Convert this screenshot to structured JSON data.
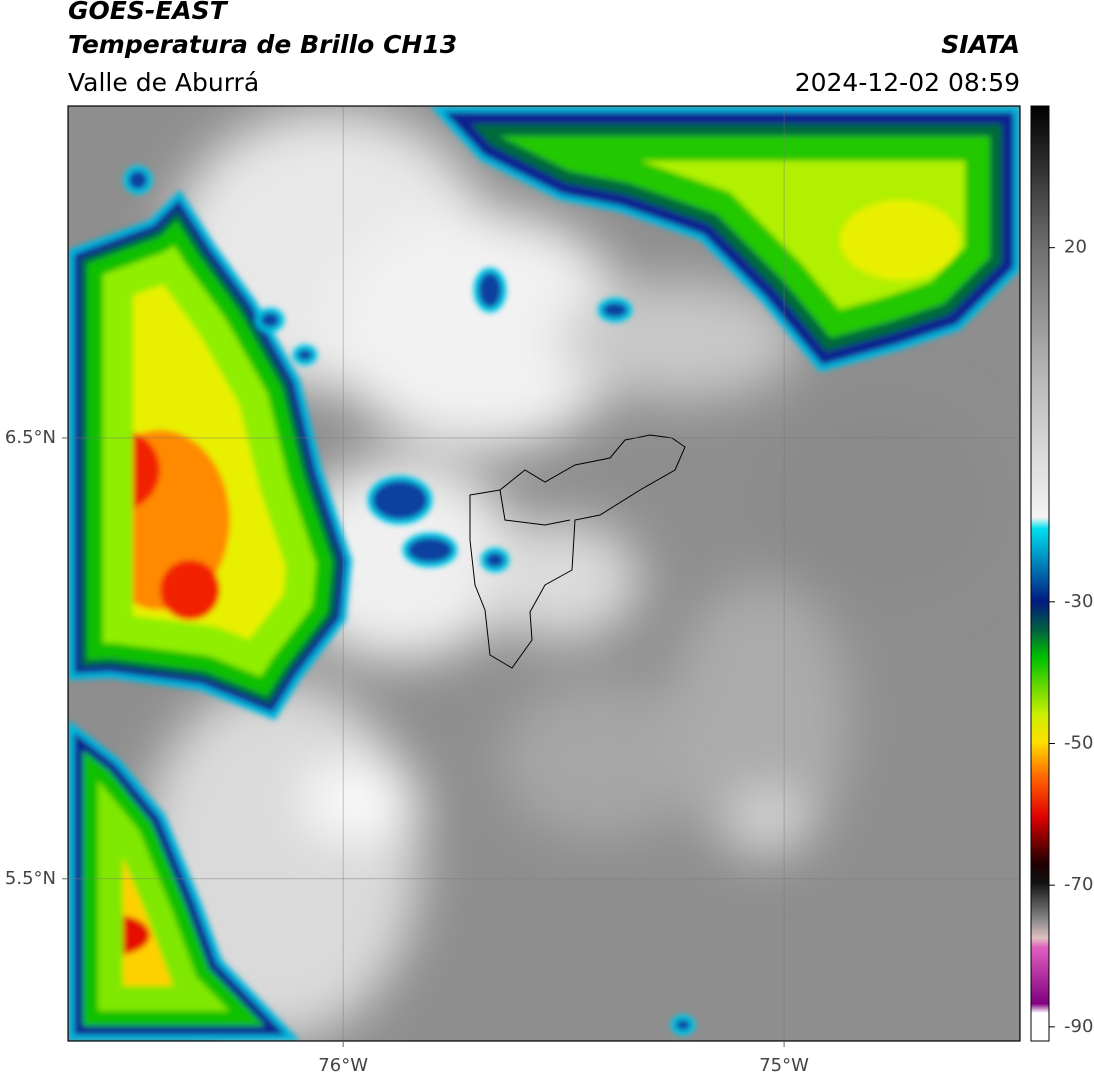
{
  "header": {
    "title": "GOES-EAST",
    "subtitle": "Temperatura de Brillo CH13",
    "region": "Valle de Aburrá",
    "source": "SIATA",
    "datetime": "2024-12-02 08:59"
  },
  "map": {
    "xlim": [
      -76.624,
      -74.465
    ],
    "ylim": [
      5.132,
      7.253
    ],
    "xticks": [
      {
        "value": -76,
        "label": "76°W"
      },
      {
        "value": -75,
        "label": "75°W"
      }
    ],
    "yticks": [
      {
        "value": 5.5,
        "label": "5.5°N"
      },
      {
        "value": 6.5,
        "label": "6.5°N"
      }
    ],
    "grid": true
  },
  "colorbar": {
    "lim": [
      -92,
      40
    ],
    "ticks": [
      -90,
      -70,
      -50,
      -30,
      20
    ]
  }
}
